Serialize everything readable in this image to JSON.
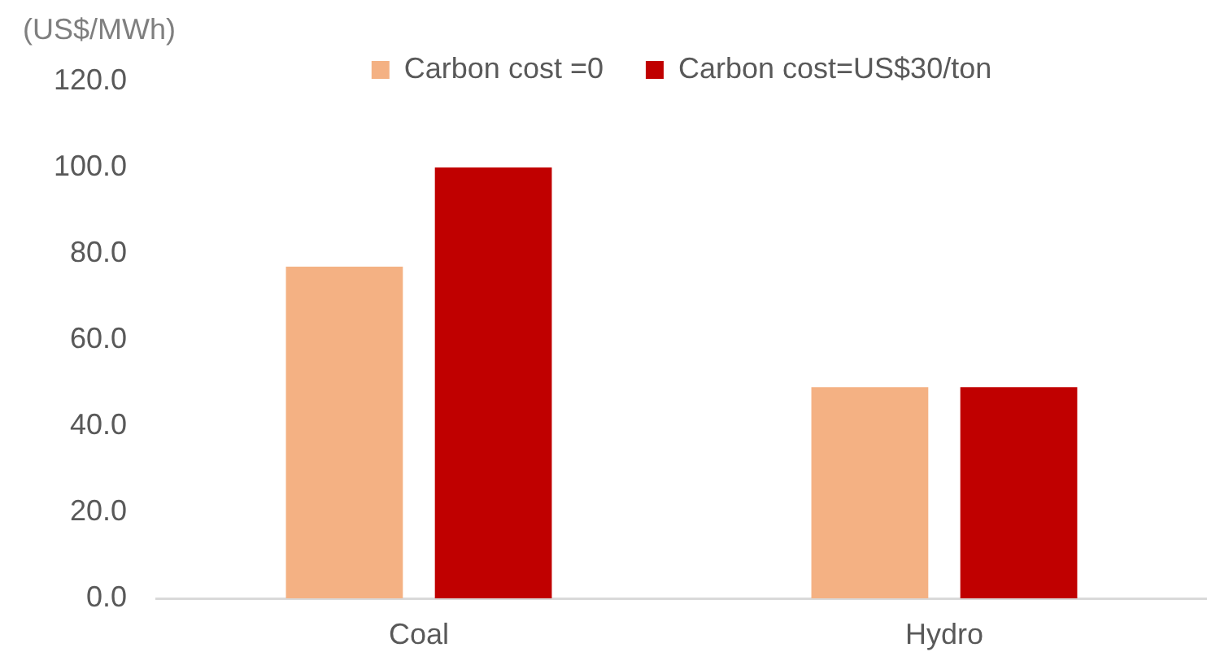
{
  "chart_data": {
    "type": "bar",
    "ylabel": "(US$/MWh)",
    "categories": [
      "Coal",
      "Hydro"
    ],
    "series": [
      {
        "name": "Carbon cost =0",
        "color": "#f4b183",
        "values": [
          77,
          49
        ]
      },
      {
        "name": "Carbon cost=US$30/ton",
        "color": "#c00000",
        "values": [
          100,
          49
        ]
      }
    ],
    "ylim": [
      0,
      120
    ],
    "yticks": [
      {
        "value": 0,
        "label": "0.0"
      },
      {
        "value": 20,
        "label": "20.0"
      },
      {
        "value": 40,
        "label": "40.0"
      },
      {
        "value": 60,
        "label": "60.0"
      },
      {
        "value": 80,
        "label": "80.0"
      },
      {
        "value": 100,
        "label": "100.0"
      },
      {
        "value": 120,
        "label": "120.0"
      }
    ],
    "grid": false,
    "legend": "top"
  }
}
